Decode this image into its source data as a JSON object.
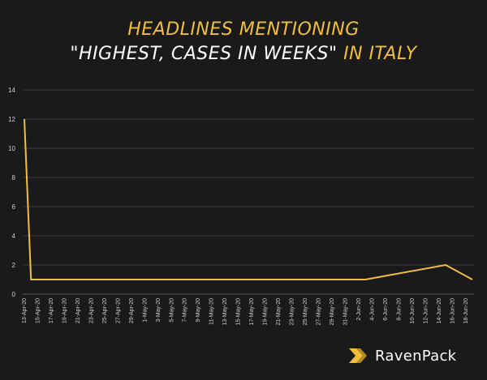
{
  "title": {
    "line1": "HEADLINES MENTIONING",
    "line2_quote": "\"HIGHEST, CASES IN WEEKS\"",
    "line2_suffix": "IN ITALY"
  },
  "brand": {
    "name": "RavenPack",
    "icon": "ravenpack-chevron-icon"
  },
  "colors": {
    "background": "#1b1a1a",
    "series": "#f2bf3d",
    "grid": "#3a3939",
    "text": "#cfcfcf"
  },
  "chart_data": {
    "type": "line",
    "title": "HEADLINES MENTIONING \"HIGHEST, CASES IN WEEKS\" IN ITALY",
    "xlabel": "",
    "ylabel": "",
    "ylim": [
      0,
      14
    ],
    "yticks": [
      0,
      2,
      4,
      6,
      8,
      10,
      12,
      14
    ],
    "grid": "horizontal",
    "xrange": [
      "13-Apr-20",
      "19-Jun-20"
    ],
    "x_tick_labels": [
      "13-Apr-20",
      "15-Apr-20",
      "17-Apr-20",
      "19-Apr-20",
      "21-Apr-20",
      "23-Apr-20",
      "25-Apr-20",
      "27-Apr-20",
      "29-Apr-20",
      "1-May-20",
      "3-May-20",
      "5-May-20",
      "7-May-20",
      "9-May-20",
      "11-May-20",
      "13-May-20",
      "15-May-20",
      "17-May-20",
      "19-May-20",
      "21-May-20",
      "23-May-20",
      "25-May-20",
      "27-May-20",
      "29-May-20",
      "31-May-20",
      "2-Jun-20",
      "4-Jun-20",
      "6-Jun-20",
      "8-Jun-20",
      "10-Jun-20",
      "12-Jun-20",
      "14-Jun-20",
      "16-Jun-20",
      "18-Jun-20"
    ],
    "series": [
      {
        "points": [
          {
            "x": "13-Apr-20",
            "y": 12
          },
          {
            "x": "14-Apr-20",
            "y": 1
          },
          {
            "x": "3-Jun-20",
            "y": 1
          },
          {
            "x": "15-Jun-20",
            "y": 2
          },
          {
            "x": "19-Jun-20",
            "y": 1
          }
        ]
      }
    ]
  }
}
